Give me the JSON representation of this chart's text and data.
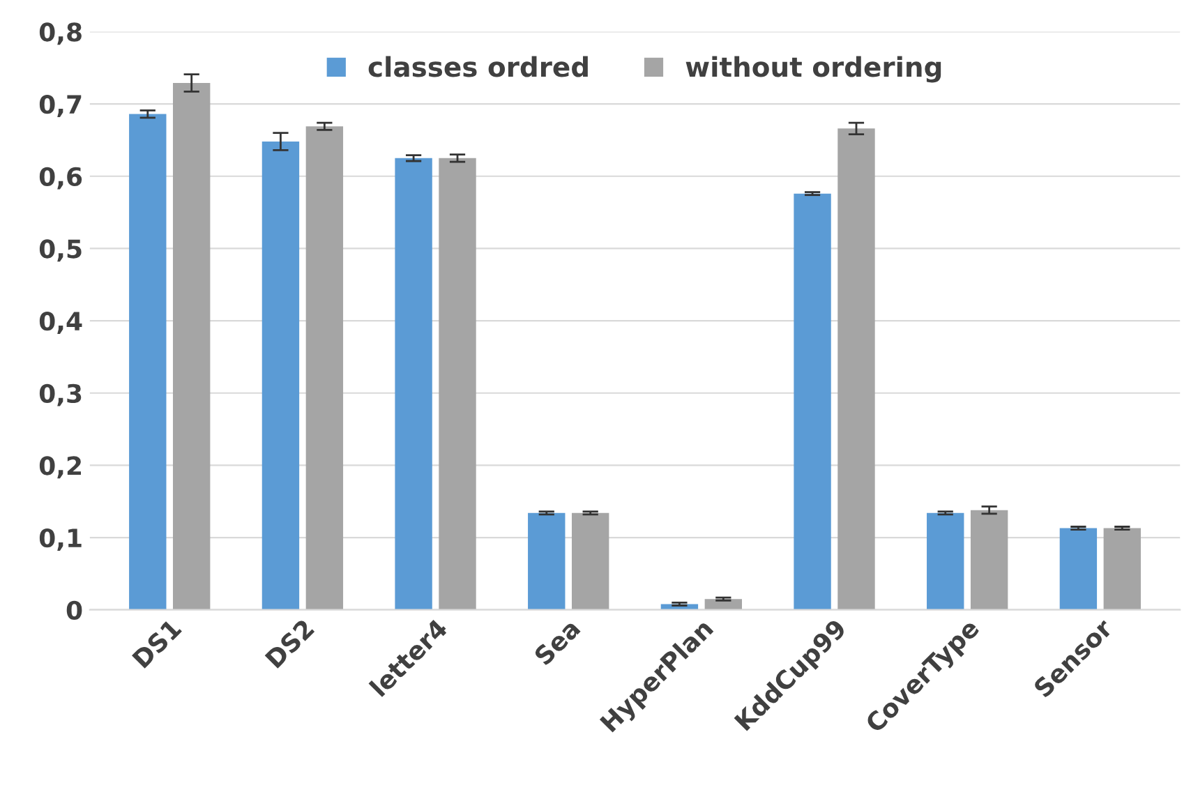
{
  "chart_data": {
    "type": "bar",
    "categories": [
      "DS1",
      "DS2",
      "letter4",
      "Sea",
      "HyperPlan",
      "KddCup99",
      "CoverType",
      "Sensor"
    ],
    "series": [
      {
        "name": "classes ordred",
        "color": "#5b9bd5",
        "values": [
          0.686,
          0.648,
          0.625,
          0.134,
          0.008,
          0.576,
          0.134,
          0.113
        ],
        "errors": [
          0.005,
          0.012,
          0.004,
          0.002,
          0.002,
          0.002,
          0.002,
          0.002
        ]
      },
      {
        "name": "without ordering",
        "color": "#a5a5a5",
        "values": [
          0.729,
          0.669,
          0.625,
          0.134,
          0.015,
          0.666,
          0.138,
          0.113
        ],
        "errors": [
          0.012,
          0.005,
          0.005,
          0.002,
          0.002,
          0.008,
          0.005,
          0.002
        ]
      }
    ],
    "ylim": [
      0,
      0.8
    ],
    "yticks": [
      {
        "value": 0,
        "label": "0"
      },
      {
        "value": 0.1,
        "label": "0,1"
      },
      {
        "value": 0.2,
        "label": "0,2"
      },
      {
        "value": 0.3,
        "label": "0,3"
      },
      {
        "value": 0.4,
        "label": "0,4"
      },
      {
        "value": 0.5,
        "label": "0,5"
      },
      {
        "value": 0.6,
        "label": "0,6"
      },
      {
        "value": 0.7,
        "label": "0,7"
      },
      {
        "value": 0.8,
        "label": "0,8"
      }
    ],
    "grid": "y",
    "legend": "top"
  }
}
